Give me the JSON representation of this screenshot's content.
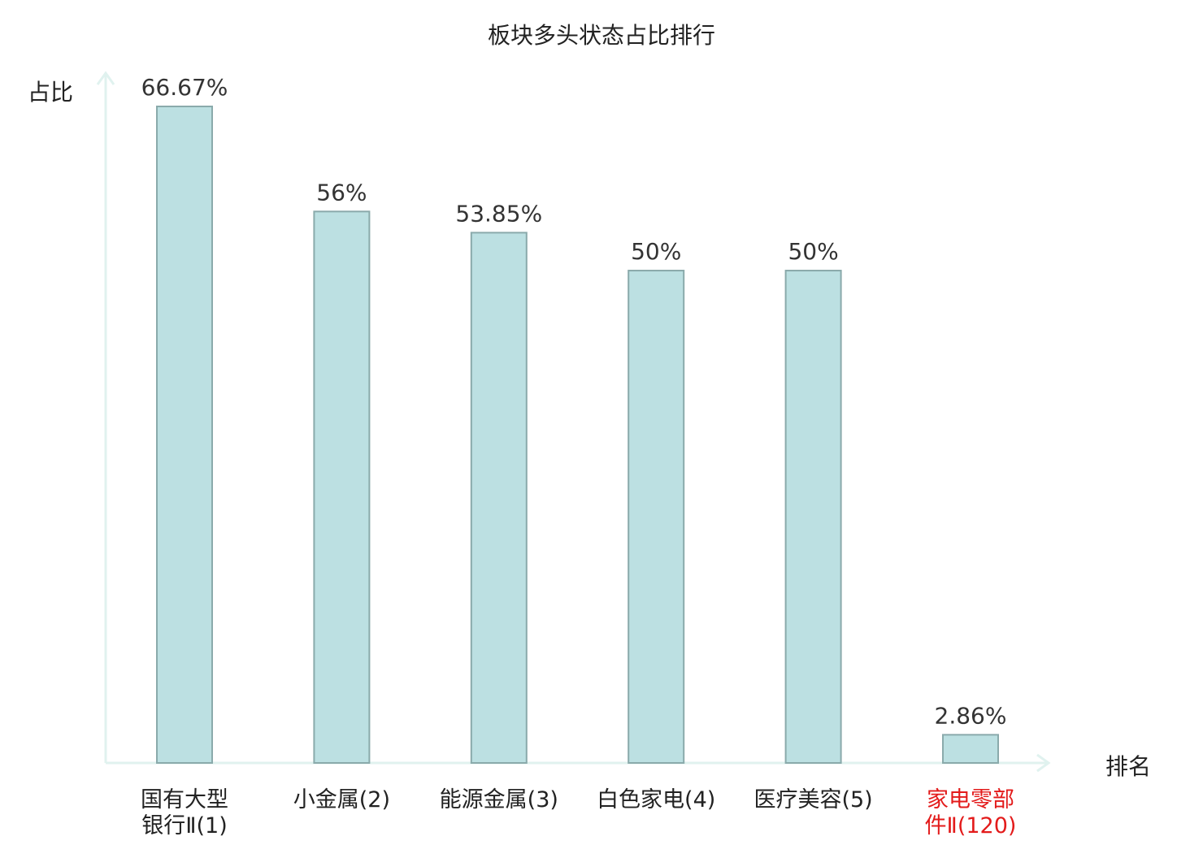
{
  "chart_data": {
    "type": "bar",
    "title": "板块多头状态占比排行",
    "ylabel": "占比",
    "xlabel": "排名",
    "ylim": [
      0,
      70
    ],
    "grid": false,
    "legend": "none",
    "categories": [
      {
        "lines": [
          "国有大型",
          "银行Ⅱ(1)"
        ],
        "highlight": false
      },
      {
        "lines": [
          "小金属(2)"
        ],
        "highlight": false
      },
      {
        "lines": [
          "能源金属(3)"
        ],
        "highlight": false
      },
      {
        "lines": [
          "白色家电(4)"
        ],
        "highlight": false
      },
      {
        "lines": [
          "医疗美容(5)"
        ],
        "highlight": false
      },
      {
        "lines": [
          "家电零部",
          "件Ⅱ(120)"
        ],
        "highlight": true
      }
    ],
    "values": [
      66.67,
      56,
      53.85,
      50,
      50,
      2.86
    ],
    "value_labels": [
      "66.67%",
      "56%",
      "53.85%",
      "50%",
      "50%",
      "2.86%"
    ],
    "colors": {
      "bar_fill": "#bce0e2",
      "bar_stroke": "#8aaaab",
      "axis": "#e0f2ef",
      "text": "#222222",
      "value_text": "#333333",
      "highlight_text": "#e31b1b"
    }
  }
}
